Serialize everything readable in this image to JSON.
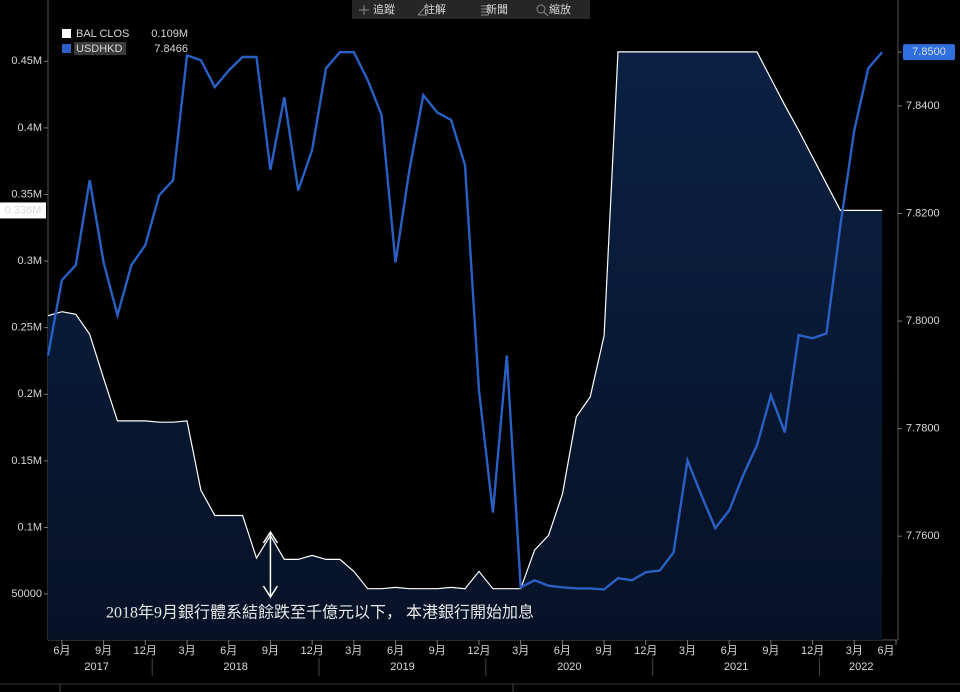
{
  "chart_data": {
    "type": "dual-axis-area-line",
    "toolbar": [
      "追蹤",
      "註解",
      "新聞",
      "縮放"
    ],
    "annotation": "2018年9月銀行體系結餘跌至千億元以下， 本港銀行開始加息",
    "annotation_x": "2018-09",
    "x": [
      "2017-05",
      "2017-06",
      "2017-07",
      "2017-08",
      "2017-09",
      "2017-10",
      "2017-11",
      "2017-12",
      "2018-01",
      "2018-02",
      "2018-03",
      "2018-04",
      "2018-05",
      "2018-06",
      "2018-07",
      "2018-08",
      "2018-09",
      "2018-10",
      "2018-11",
      "2018-12",
      "2019-01",
      "2019-02",
      "2019-03",
      "2019-04",
      "2019-05",
      "2019-06",
      "2019-07",
      "2019-08",
      "2019-09",
      "2019-10",
      "2019-11",
      "2019-12",
      "2020-01",
      "2020-02",
      "2020-03",
      "2020-04",
      "2020-05",
      "2020-06",
      "2020-07",
      "2020-08",
      "2020-09",
      "2020-10",
      "2020-11",
      "2020-12",
      "2021-01",
      "2021-02",
      "2021-03",
      "2021-04",
      "2021-05",
      "2021-06",
      "2021-07",
      "2021-08",
      "2021-09",
      "2021-10",
      "2021-11",
      "2021-12",
      "2022-01",
      "2022-02",
      "2022-03",
      "2022-04",
      "2022-05"
    ],
    "xlim": [
      "2017-05",
      "2022-06"
    ],
    "xticks": [
      {
        "value": "2017-06",
        "label": "6月"
      },
      {
        "value": "2017-09",
        "label": "9月"
      },
      {
        "value": "2017-12",
        "label": "12月"
      },
      {
        "value": "2018-03",
        "label": "3月"
      },
      {
        "value": "2018-06",
        "label": "6月"
      },
      {
        "value": "2018-09",
        "label": "9月"
      },
      {
        "value": "2018-12",
        "label": "12月"
      },
      {
        "value": "2019-03",
        "label": "3月"
      },
      {
        "value": "2019-06",
        "label": "6月"
      },
      {
        "value": "2019-09",
        "label": "9月"
      },
      {
        "value": "2019-12",
        "label": "12月"
      },
      {
        "value": "2020-03",
        "label": "3月"
      },
      {
        "value": "2020-06",
        "label": "6月"
      },
      {
        "value": "2020-09",
        "label": "9月"
      },
      {
        "value": "2020-12",
        "label": "12月"
      },
      {
        "value": "2021-03",
        "label": "3月"
      },
      {
        "value": "2021-06",
        "label": "6月"
      },
      {
        "value": "2021-09",
        "label": "9月"
      },
      {
        "value": "2021-12",
        "label": "12月"
      },
      {
        "value": "2022-03",
        "label": "3月"
      },
      {
        "value": "2022-06",
        "label": "6月"
      }
    ],
    "years": [
      "2017",
      "2018",
      "2019",
      "2020",
      "2021",
      "2022"
    ],
    "ylim": [
      15500,
      496000
    ],
    "yticks": [
      50000,
      {
        "value": 100000,
        "label": "0.1M"
      },
      {
        "value": 150000,
        "label": "0.15M"
      },
      {
        "value": 200000,
        "label": "0.2M"
      },
      {
        "value": 250000,
        "label": "0.25M"
      },
      {
        "value": 300000,
        "label": "0.3M"
      },
      {
        "value": 350000,
        "label": "0.35M"
      },
      {
        "value": 400000,
        "label": "0.4M"
      },
      {
        "value": 450000,
        "label": "0.45M"
      }
    ],
    "y2lim": [
      7.7407,
      7.8597
    ],
    "y2ticks": [
      {
        "value": 7.76,
        "label": "7.7600"
      },
      {
        "value": 7.78,
        "label": "7.7800"
      },
      {
        "value": 7.8,
        "label": "7.8000"
      },
      {
        "value": 7.82,
        "label": "7.8200"
      },
      {
        "value": 7.84,
        "label": "7.8400"
      },
      {
        "value": 7.85,
        "label": "7.8500"
      }
    ],
    "series": [
      {
        "name": "BAL CLOS",
        "color": "#ffffff",
        "fill": "#0b2143",
        "legend_value": "0.109M",
        "last_value_label": "0.338M",
        "values": [
          259000,
          262000,
          260000,
          245000,
          212000,
          180000,
          180000,
          180000,
          179000,
          179000,
          180000,
          128000,
          109000,
          109000,
          109000,
          77000,
          94000,
          76000,
          76000,
          79000,
          76000,
          76000,
          67000,
          54000,
          54000,
          55000,
          54000,
          54000,
          54000,
          55000,
          54000,
          67000,
          54000,
          54000,
          54000,
          83000,
          94000,
          125000,
          183000,
          198000,
          244000,
          457000,
          457000,
          457000,
          457000,
          457000,
          457000,
          457000,
          457000,
          457000,
          457000,
          457000,
          437000,
          417000,
          398000,
          378000,
          358000,
          338000,
          338000,
          338000,
          338000
        ]
      },
      {
        "name": "USDHKD",
        "color": "#2a5fc4",
        "axis": "y2",
        "legend_value": "7.8466",
        "last_value_label": "7.8500",
        "values": [
          7.7936,
          7.8076,
          7.8104,
          7.8262,
          7.8109,
          7.8011,
          7.8104,
          7.8141,
          7.8234,
          7.8262,
          7.8494,
          7.8485,
          7.8435,
          7.8466,
          7.8491,
          7.8491,
          7.8281,
          7.8416,
          7.8243,
          7.8318,
          7.847,
          7.85,
          7.85,
          7.8448,
          7.8383,
          7.8109,
          7.8281,
          7.842,
          7.8388,
          7.8374,
          7.829,
          7.7871,
          7.7644,
          7.7936,
          7.7505,
          7.7518,
          7.7508,
          7.7505,
          7.7503,
          7.7503,
          7.7501,
          7.7522,
          7.7518,
          7.7533,
          7.7536,
          7.757,
          7.7741,
          7.7676,
          7.7615,
          7.7648,
          7.7713,
          7.7769,
          7.7862,
          7.7793,
          7.7974,
          7.7968,
          7.7977,
          7.8178,
          7.8355,
          7.847,
          7.85
        ]
      }
    ]
  }
}
